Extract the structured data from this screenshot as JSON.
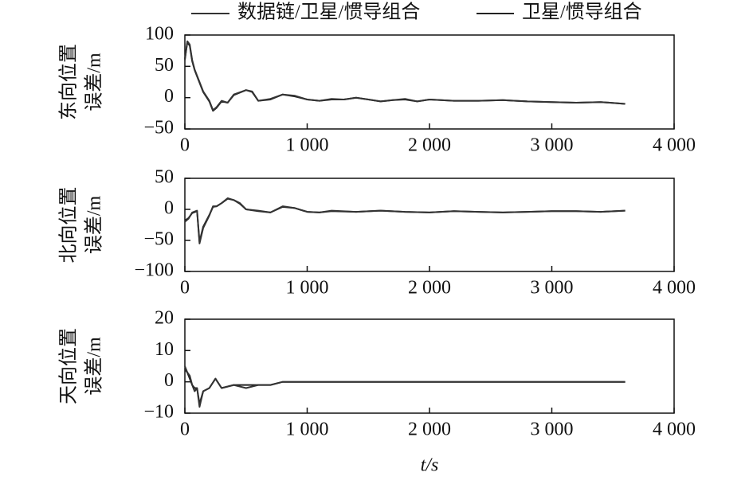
{
  "chart_data": [
    {
      "type": "line",
      "ylabel": [
        "东向位置",
        "误差/m"
      ],
      "x": [
        0,
        20,
        40,
        60,
        80,
        100,
        150,
        200,
        230,
        260,
        300,
        350,
        400,
        500,
        550,
        600,
        700,
        800,
        900,
        1000,
        1100,
        1200,
        1300,
        1400,
        1500,
        1600,
        1700,
        1800,
        1900,
        2000,
        2200,
        2400,
        2600,
        2800,
        3000,
        3200,
        3400,
        3600
      ],
      "series": [
        {
          "name": "数据链/卫星/惯导组合",
          "color": "#333333",
          "values": [
            60,
            90,
            85,
            60,
            45,
            35,
            10,
            -5,
            -20,
            -15,
            -5,
            -8,
            5,
            12,
            10,
            -5,
            -2,
            5,
            3,
            -3,
            -5,
            -2,
            -3,
            0,
            -3,
            -6,
            -4,
            -2,
            -6,
            -3,
            -5,
            -5,
            -4,
            -6,
            -7,
            -8,
            -7,
            -10
          ]
        },
        {
          "name": "卫星/惯导组合",
          "color": "#222222",
          "values": [
            62,
            88,
            83,
            58,
            44,
            34,
            9,
            -6,
            -21,
            -16,
            -6,
            -8,
            4,
            12,
            9,
            -5,
            -3,
            5,
            2,
            -3,
            -5,
            -3,
            -3,
            0,
            -3,
            -6,
            -4,
            -3,
            -6,
            -3,
            -5,
            -5,
            -4,
            -6,
            -7,
            -8,
            -7,
            -10
          ]
        }
      ],
      "xlim": [
        0,
        4000
      ],
      "xticks": [
        0,
        {
          "value": 1000,
          "label": "1 000"
        },
        {
          "value": 2000,
          "label": "2 000"
        },
        {
          "value": 3000,
          "label": "3 000"
        },
        {
          "value": 4000,
          "label": "4 000"
        }
      ],
      "ylim": [
        -50,
        100
      ],
      "yticks": [
        {
          "value": -50,
          "label": "−50"
        },
        0,
        50,
        100
      ]
    },
    {
      "type": "line",
      "ylabel": [
        "北向位置",
        "误差/m"
      ],
      "x": [
        0,
        30,
        60,
        100,
        120,
        150,
        200,
        230,
        260,
        300,
        350,
        400,
        450,
        500,
        600,
        700,
        800,
        900,
        1000,
        1100,
        1200,
        1400,
        1600,
        1800,
        2000,
        2200,
        2400,
        2600,
        2800,
        3000,
        3200,
        3400,
        3600
      ],
      "series": [
        {
          "color": "#333333",
          "values": [
            -20,
            -15,
            -5,
            -2,
            -55,
            -30,
            -10,
            5,
            5,
            10,
            18,
            15,
            10,
            0,
            -2,
            -5,
            5,
            2,
            -4,
            -5,
            -2,
            -4,
            -2,
            -4,
            -5,
            -3,
            -4,
            -5,
            -4,
            -3,
            -3,
            -4,
            -2
          ]
        },
        {
          "color": "#222222",
          "values": [
            -18,
            -14,
            -6,
            -3,
            -52,
            -28,
            -9,
            4,
            5,
            10,
            17,
            15,
            9,
            0,
            -3,
            -5,
            4,
            2,
            -4,
            -5,
            -3,
            -4,
            -2,
            -4,
            -5,
            -3,
            -4,
            -5,
            -4,
            -3,
            -3,
            -4,
            -2
          ]
        }
      ],
      "xlim": [
        0,
        4000
      ],
      "xticks": [
        0,
        {
          "value": 1000,
          "label": "1 000"
        },
        {
          "value": 2000,
          "label": "2 000"
        },
        {
          "value": 3000,
          "label": "3 000"
        },
        {
          "value": 4000,
          "label": "4 000"
        }
      ],
      "ylim": [
        -100,
        50
      ],
      "yticks": [
        {
          "value": -100,
          "label": "−100"
        },
        {
          "value": -50,
          "label": "−50"
        },
        0,
        50
      ]
    },
    {
      "type": "line",
      "ylabel": [
        "天向位置",
        "误差/m"
      ],
      "xlabel": "t/s",
      "x": [
        0,
        20,
        40,
        60,
        80,
        100,
        120,
        150,
        200,
        250,
        300,
        400,
        500,
        600,
        700,
        800,
        1000,
        1500,
        2000,
        2500,
        3000,
        3600
      ],
      "series": [
        {
          "color": "#333333",
          "values": [
            5,
            3,
            2,
            -1,
            -3,
            -2,
            -8,
            -3,
            -2,
            1,
            -2,
            -1,
            -2,
            -1,
            -1,
            0,
            0,
            0,
            0,
            0,
            0,
            0
          ]
        },
        {
          "color": "#222222",
          "values": [
            4,
            3,
            1,
            -1,
            -2,
            -2,
            -7,
            -3,
            -2,
            1,
            -2,
            -1,
            -1,
            -1,
            -1,
            0,
            0,
            0,
            0,
            0,
            0,
            0
          ]
        }
      ],
      "xlim": [
        0,
        4000
      ],
      "xticks": [
        0,
        {
          "value": 1000,
          "label": "1 000"
        },
        {
          "value": 2000,
          "label": "2 000"
        },
        {
          "value": 3000,
          "label": "3 000"
        },
        {
          "value": 4000,
          "label": "4 000"
        }
      ],
      "ylim": [
        -10,
        20
      ],
      "yticks": [
        {
          "value": -10,
          "label": "−10"
        },
        0,
        10,
        20
      ]
    }
  ]
}
